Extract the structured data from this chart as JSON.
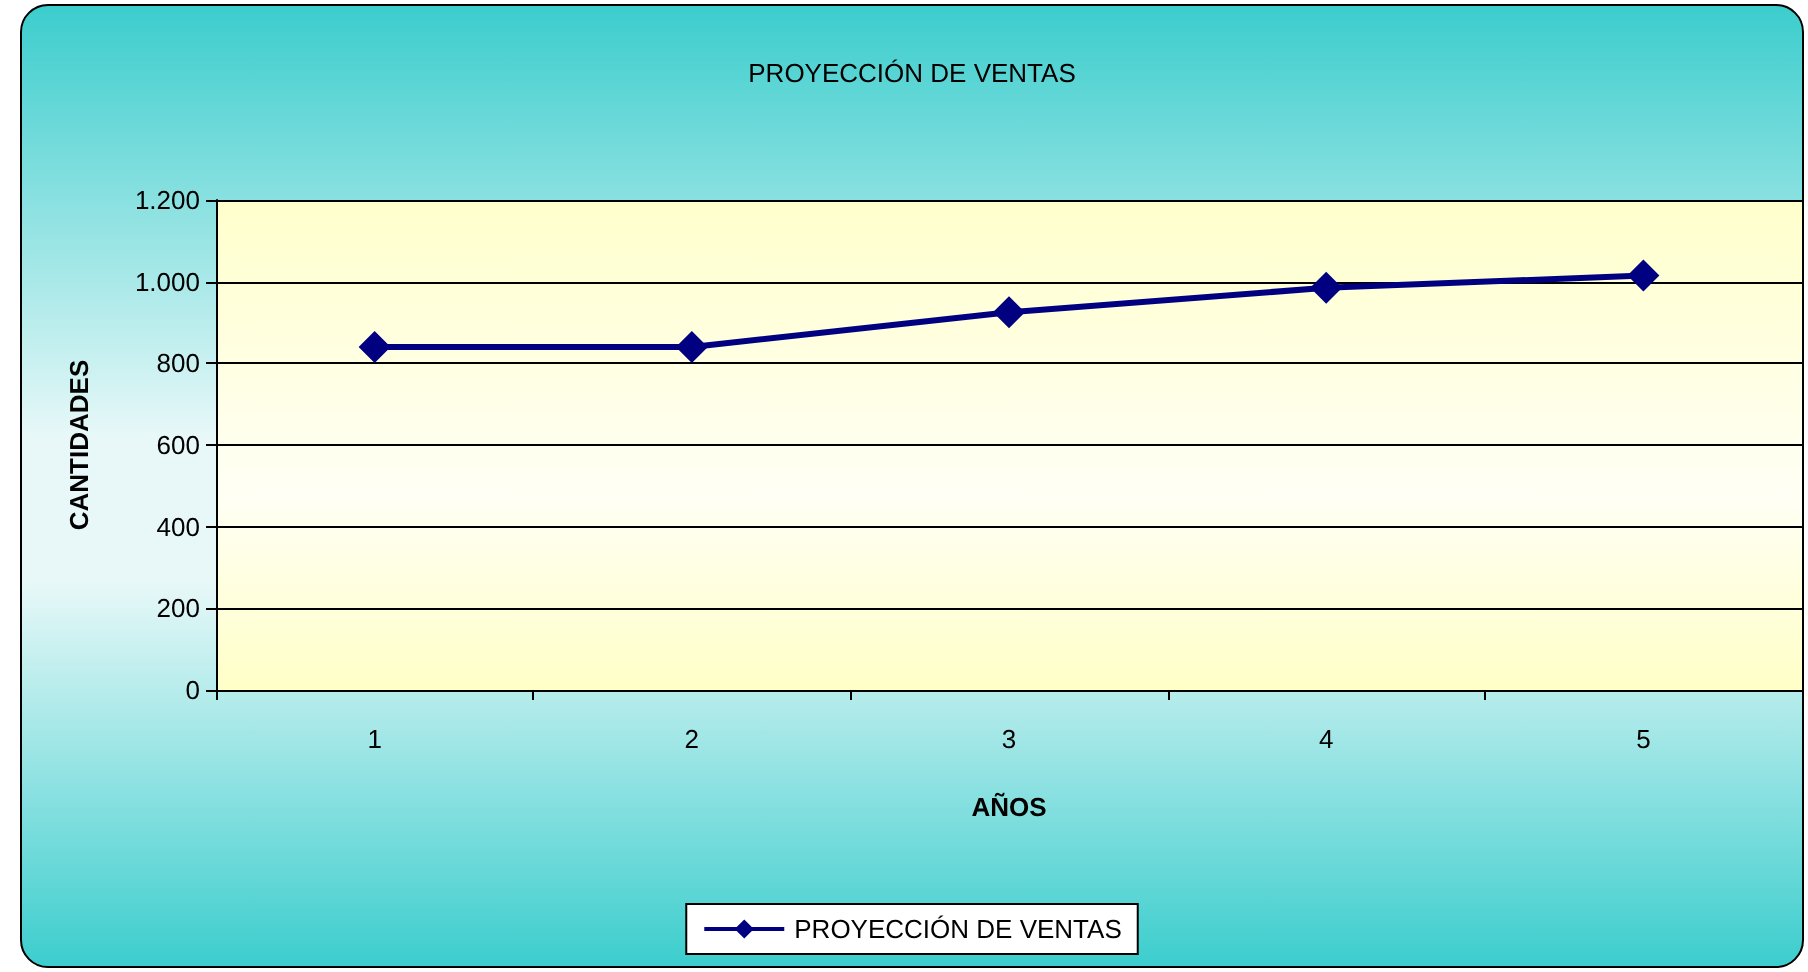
{
  "chart_data": {
    "type": "line",
    "title": "PROYECCIÓN DE VENTAS",
    "xlabel": "AÑOS",
    "ylabel": "CANTIDADES",
    "categories": [
      "1",
      "2",
      "3",
      "4",
      "5"
    ],
    "series": [
      {
        "name": "PROYECCIÓN DE VENTAS",
        "color": "#000080",
        "values": [
          840,
          840,
          925,
          985,
          1015
        ]
      }
    ],
    "ylim": [
      0,
      1200
    ],
    "yticks": [
      0,
      200,
      400,
      600,
      800,
      {
        "value": 1000,
        "label": "1.000"
      },
      {
        "value": 1200,
        "label": "1.200"
      }
    ],
    "grid": "y",
    "legend": "bottom",
    "marker": "diamond",
    "line_style": "solid"
  }
}
